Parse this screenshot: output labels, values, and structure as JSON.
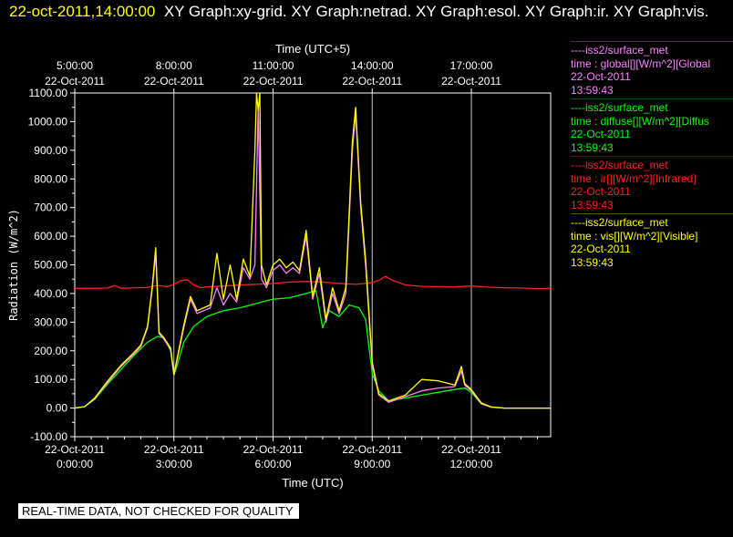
{
  "header": {
    "timestamp": "22-oct-2011,14:00:00",
    "graphs": "XY Graph:xy-grid.  XY Graph:netrad.  XY Graph:esol.  XY Graph:ir.  XY Graph:vis."
  },
  "legend": [
    {
      "line": "----iss2/surface_met",
      "desc": "time : global[][W/m^2][Global",
      "date": "22-Oct-2011",
      "time": "13:59:43",
      "color": "#ff80ff"
    },
    {
      "line": "----iss2/surface_met",
      "desc": "time : diffuse[][W/m^2][Diffus",
      "date": "22-Oct-2011",
      "time": "13:59:43",
      "color": "#00ff00"
    },
    {
      "line": "----iss2/surface_met",
      "desc": "time : ir[][W/m^2][Infrared]",
      "date": "22-Oct-2011",
      "time": "13:59:43",
      "color": "#ff2020"
    },
    {
      "line": "----iss2/surface_met",
      "desc": "time : vis[][W/m^2][Visible]",
      "date": "22-Oct-2011",
      "time": "13:59:43",
      "color": "#ffff00"
    }
  ],
  "note": "REAL-TIME DATA, NOT CHECKED FOR QUALITY",
  "chart_data": {
    "type": "line",
    "title": "",
    "xlabel": "Time (UTC)",
    "xlabel_top": "Time (UTC+5)",
    "ylabel": "Radiation (W/m^2)",
    "xlim": [
      0,
      14.4
    ],
    "ylim": [
      -100,
      1100
    ],
    "yticks": [
      -100,
      0,
      100,
      200,
      300,
      400,
      500,
      600,
      700,
      800,
      900,
      1000,
      1100
    ],
    "ytick_labels": [
      "-100.00",
      "0.00",
      "100.00",
      "200.00",
      "300.00",
      "400.00",
      "500.00",
      "600.00",
      "700.00",
      "800.00",
      "900.00",
      "1000.00",
      "1100.00"
    ],
    "xticks_bottom": [
      {
        "x": 0,
        "date": "22-Oct-2011",
        "time": "0:00:00"
      },
      {
        "x": 3,
        "date": "22-Oct-2011",
        "time": "3:00:00"
      },
      {
        "x": 6,
        "date": "22-Oct-2011",
        "time": "6:00:00"
      },
      {
        "x": 9,
        "date": "22-Oct-2011",
        "time": "9:00:00"
      },
      {
        "x": 12,
        "date": "22-Oct-2011",
        "time": "12:00:00"
      }
    ],
    "xticks_top": [
      {
        "x": 0,
        "time": "5:00:00",
        "date": "22-Oct-2011"
      },
      {
        "x": 3,
        "time": "8:00:00",
        "date": "22-Oct-2011"
      },
      {
        "x": 6,
        "time": "11:00:00",
        "date": "22-Oct-2011"
      },
      {
        "x": 9,
        "time": "14:00:00",
        "date": "22-Oct-2011"
      },
      {
        "x": 12,
        "time": "17:00:00",
        "date": "22-Oct-2011"
      }
    ],
    "grid": "vertical",
    "series": [
      {
        "name": "ir",
        "color": "#ff2020",
        "x": [
          0,
          0.5,
          1.0,
          1.2,
          1.4,
          1.8,
          2.2,
          2.5,
          2.8,
          3.0,
          3.2,
          3.4,
          3.6,
          3.8,
          4.0,
          4.5,
          5.0,
          5.5,
          6.0,
          6.5,
          7.0,
          7.5,
          8.0,
          8.5,
          9.0,
          9.2,
          9.4,
          9.6,
          10.0,
          10.5,
          11.0,
          11.5,
          12.0,
          12.5,
          13.0,
          13.5,
          14.0,
          14.4
        ],
        "values": [
          418,
          418,
          419,
          428,
          418,
          420,
          421,
          428,
          424,
          432,
          445,
          448,
          430,
          420,
          423,
          426,
          430,
          432,
          435,
          440,
          442,
          440,
          435,
          432,
          438,
          446,
          460,
          447,
          430,
          425,
          424,
          423,
          426,
          422,
          420,
          419,
          417,
          418
        ]
      },
      {
        "name": "diffuse",
        "color": "#00ff00",
        "x": [
          0,
          0.3,
          0.6,
          1.0,
          1.4,
          1.8,
          2.2,
          2.5,
          2.7,
          2.9,
          3.0,
          3.1,
          3.3,
          3.6,
          4.0,
          4.5,
          5.0,
          5.5,
          5.8,
          6.0,
          6.5,
          7.0,
          7.3,
          7.5,
          7.7,
          8.0,
          8.3,
          8.6,
          8.8,
          9.0,
          9.2,
          9.5,
          10.0,
          10.5,
          11.0,
          11.5,
          11.8,
          12.0,
          12.3,
          12.6,
          13.0,
          13.5,
          14.0,
          14.4
        ],
        "values": [
          0,
          5,
          30,
          85,
          135,
          185,
          230,
          250,
          245,
          200,
          115,
          150,
          230,
          285,
          320,
          340,
          350,
          365,
          375,
          380,
          385,
          400,
          410,
          280,
          340,
          320,
          360,
          350,
          310,
          120,
          60,
          25,
          35,
          45,
          55,
          65,
          70,
          55,
          15,
          3,
          0,
          0,
          0,
          0
        ]
      },
      {
        "name": "global",
        "color": "#ff80ff",
        "x": [
          0,
          0.3,
          0.6,
          1.0,
          1.4,
          1.8,
          2.0,
          2.2,
          2.35,
          2.45,
          2.55,
          2.7,
          2.9,
          3.0,
          3.1,
          3.3,
          3.5,
          3.7,
          3.9,
          4.1,
          4.3,
          4.5,
          4.7,
          4.9,
          5.1,
          5.3,
          5.45,
          5.55,
          5.65,
          5.8,
          6.0,
          6.2,
          6.4,
          6.6,
          6.8,
          7.0,
          7.2,
          7.4,
          7.6,
          7.8,
          8.0,
          8.2,
          8.4,
          8.5,
          8.65,
          8.8,
          9.0,
          9.2,
          9.5,
          10.0,
          10.5,
          11.0,
          11.5,
          11.7,
          11.8,
          12.0,
          12.3,
          12.6,
          13.0,
          13.5,
          14.0,
          14.4
        ],
        "values": [
          0,
          5,
          32,
          90,
          145,
          190,
          215,
          280,
          420,
          540,
          260,
          240,
          205,
          115,
          170,
          280,
          380,
          330,
          340,
          350,
          420,
          360,
          400,
          370,
          490,
          450,
          500,
          1050,
          450,
          420,
          480,
          500,
          470,
          490,
          470,
          600,
          380,
          470,
          300,
          400,
          330,
          400,
          900,
          1030,
          700,
          500,
          150,
          45,
          20,
          40,
          60,
          70,
          75,
          130,
          80,
          60,
          15,
          3,
          0,
          0,
          0,
          0
        ]
      },
      {
        "name": "vis",
        "color": "#ffff00",
        "x": [
          0,
          0.3,
          0.6,
          1.0,
          1.4,
          1.8,
          2.0,
          2.2,
          2.35,
          2.45,
          2.55,
          2.7,
          2.9,
          3.0,
          3.1,
          3.3,
          3.5,
          3.7,
          3.9,
          4.1,
          4.3,
          4.5,
          4.7,
          4.9,
          5.1,
          5.3,
          5.45,
          5.5,
          5.55,
          5.6,
          5.65,
          5.8,
          6.0,
          6.2,
          6.4,
          6.6,
          6.8,
          7.0,
          7.2,
          7.4,
          7.6,
          7.8,
          8.0,
          8.2,
          8.4,
          8.5,
          8.65,
          8.8,
          9.0,
          9.2,
          9.5,
          10.0,
          10.5,
          11.0,
          11.5,
          11.7,
          11.8,
          12.0,
          12.3,
          12.6,
          13.0,
          13.5,
          14.0,
          14.4
        ],
        "values": [
          0,
          5,
          35,
          95,
          150,
          195,
          220,
          285,
          430,
          560,
          265,
          245,
          210,
          118,
          175,
          290,
          390,
          340,
          350,
          360,
          540,
          380,
          500,
          380,
          520,
          460,
          900,
          1100,
          1040,
          1100,
          500,
          430,
          500,
          520,
          490,
          510,
          480,
          620,
          390,
          490,
          310,
          420,
          340,
          420,
          930,
          1050,
          720,
          520,
          160,
          50,
          25,
          45,
          100,
          95,
          80,
          145,
          85,
          65,
          18,
          4,
          0,
          0,
          0,
          0
        ]
      }
    ]
  }
}
